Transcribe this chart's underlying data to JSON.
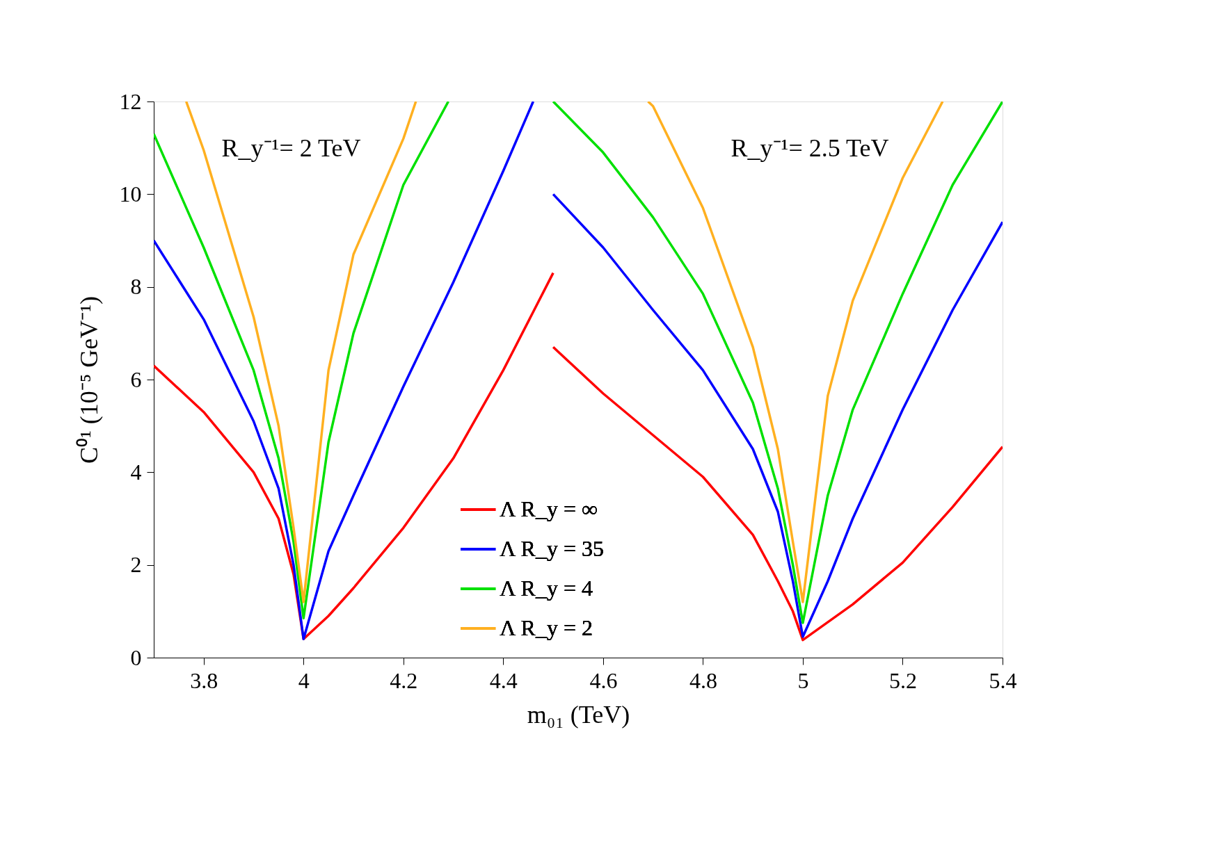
{
  "chart_data": {
    "type": "line",
    "xlabel": "m₀₁ (TeV)",
    "ylabel": "C⁰¹ (10⁻⁵ GeV⁻¹)",
    "annotations": [
      "R_y⁻¹= 2 TeV",
      "R_y⁻¹= 2.5 TeV"
    ],
    "xlim": [
      3.7,
      5.4
    ],
    "xticks": [
      3.8,
      4,
      4.2,
      4.4,
      4.6,
      4.8,
      5,
      5.2,
      5.4
    ],
    "ylim": [
      0,
      12
    ],
    "yticks": [
      0,
      2,
      4,
      6,
      8,
      10,
      12
    ],
    "grid": false,
    "legend": "bottom",
    "marker": "none",
    "line_style": "solid",
    "series": [
      {
        "name": "Λ R_y = ∞",
        "color": "#ff0000",
        "x": [
          3.7,
          3.8,
          3.9,
          3.95,
          3.98,
          4.0,
          4.05,
          4.1,
          4.2,
          4.3,
          4.4,
          4.5
        ],
        "values": [
          6.3,
          5.3,
          4.0,
          3.0,
          1.8,
          0.4,
          0.9,
          1.5,
          2.8,
          4.3,
          6.2,
          8.3
        ]
      },
      {
        "color": "#ff0000",
        "x": [
          4.5,
          4.6,
          4.7,
          4.8,
          4.9,
          4.95,
          4.98,
          5.0,
          5.1,
          5.2,
          5.3,
          5.4
        ],
        "values": [
          6.7,
          5.7,
          4.8,
          3.9,
          2.65,
          1.65,
          1.0,
          0.38,
          1.15,
          2.05,
          3.25,
          4.55
        ]
      },
      {
        "name": "Λ R_y = 35",
        "color": "#0000ff",
        "x": [
          3.7,
          3.8,
          3.9,
          3.95,
          3.98,
          4.0,
          4.05,
          4.1,
          4.2,
          4.3,
          4.4,
          4.46
        ],
        "values": [
          9.0,
          7.3,
          5.1,
          3.65,
          2.0,
          0.4,
          2.3,
          3.5,
          5.85,
          8.1,
          10.5,
          12.0
        ]
      },
      {
        "color": "#0000ff",
        "x": [
          4.5,
          4.6,
          4.7,
          4.8,
          4.9,
          4.95,
          4.98,
          5.0,
          5.05,
          5.1,
          5.2,
          5.3,
          5.4
        ],
        "values": [
          10.0,
          8.85,
          7.5,
          6.2,
          4.5,
          3.15,
          1.65,
          0.45,
          1.65,
          3.0,
          5.35,
          7.5,
          9.4
        ]
      },
      {
        "name": "Λ R_y = 4",
        "color": "#00e000",
        "x": [
          3.7,
          3.8,
          3.9,
          3.95,
          3.98,
          4.0,
          4.05,
          4.1,
          4.2,
          4.29
        ],
        "values": [
          11.3,
          8.85,
          6.2,
          4.3,
          2.5,
          0.85,
          4.65,
          7.0,
          10.2,
          12.0
        ]
      },
      {
        "color": "#00e000",
        "x": [
          4.5,
          4.6,
          4.7,
          4.8,
          4.9,
          4.95,
          4.98,
          5.0,
          5.05,
          5.1,
          5.2,
          5.3,
          5.4
        ],
        "values": [
          12.0,
          10.9,
          9.5,
          7.85,
          5.5,
          3.65,
          2.0,
          0.75,
          3.5,
          5.35,
          7.85,
          10.2,
          12.0
        ]
      },
      {
        "name": "Λ R_y = 2",
        "color": "#ffb020",
        "x": [
          3.765,
          3.8,
          3.9,
          3.95,
          3.98,
          4.0,
          4.05,
          4.1,
          4.2,
          4.225
        ],
        "values": [
          12.0,
          10.95,
          7.35,
          5.0,
          2.8,
          1.2,
          6.2,
          8.7,
          11.2,
          12.0
        ]
      },
      {
        "color": "#ffb020",
        "x": [
          4.69,
          4.7,
          4.8,
          4.9,
          4.95,
          4.98,
          5.0,
          5.05,
          5.1,
          5.2,
          5.28
        ],
        "values": [
          12.0,
          11.9,
          9.7,
          6.7,
          4.5,
          2.5,
          1.2,
          5.65,
          7.7,
          10.35,
          12.0
        ]
      }
    ]
  }
}
